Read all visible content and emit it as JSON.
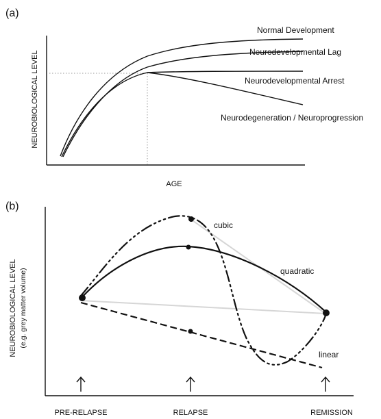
{
  "panel_a": {
    "label": "(a)",
    "ylabel": "NEUROBIOLOGICAL LEVEL",
    "xlabel": "AGE",
    "curves": [
      {
        "name": "Normal Development"
      },
      {
        "name": "Neurodevelopmental Lag"
      },
      {
        "name": "Neurodevelopmental Arrest"
      },
      {
        "name": "Neurodegeneration / Neuroprogression"
      }
    ]
  },
  "panel_b": {
    "label": "(b)",
    "ylabel_line1": "NEUROBIOLOGICAL LEVEL",
    "ylabel_line2": "(e.g. grey matter volume)",
    "trajectories": [
      {
        "name": "cubic"
      },
      {
        "name": "quadratic"
      },
      {
        "name": "linear"
      }
    ],
    "timepoints": [
      "PRE-RELAPSE",
      "RELAPSE",
      "REMISSION"
    ]
  }
}
